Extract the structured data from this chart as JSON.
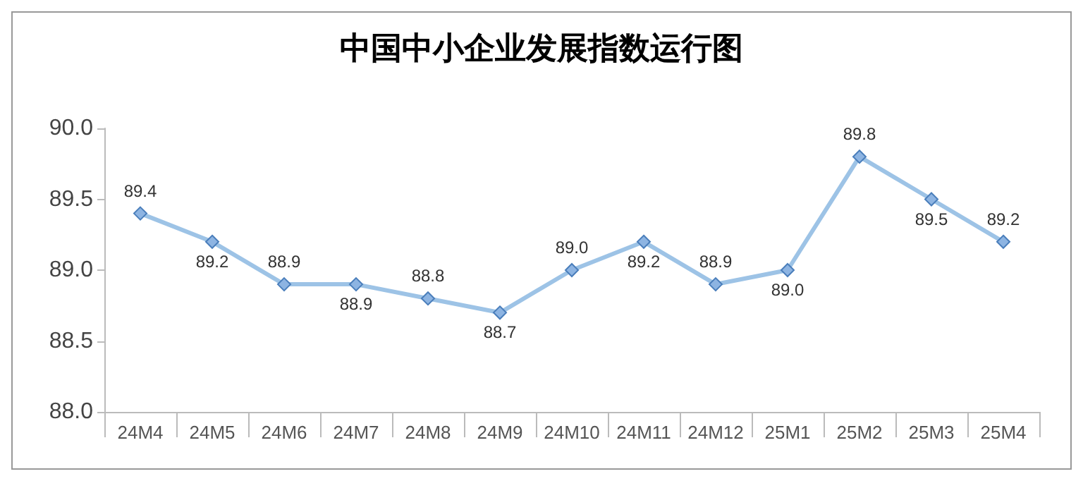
{
  "chart_data": {
    "type": "line",
    "title": "中国中小企业发展指数运行图",
    "categories": [
      "24M4",
      "24M5",
      "24M6",
      "24M7",
      "24M8",
      "24M9",
      "24M10",
      "24M11",
      "24M12",
      "25M1",
      "25M2",
      "25M3",
      "25M4"
    ],
    "series": [
      {
        "color": "#9dc3e6",
        "values": [
          89.4,
          89.2,
          88.9,
          88.9,
          88.8,
          88.7,
          89.0,
          89.2,
          88.9,
          89.0,
          89.8,
          89.5,
          89.2
        ],
        "value_labels": [
          "89.4",
          "89.2",
          "88.9",
          "88.9",
          "88.8",
          "88.7",
          "89.0",
          "89.2",
          "88.9",
          "89.0",
          "89.8",
          "89.5",
          "89.2"
        ]
      }
    ],
    "ylim": [
      88.0,
      90.0
    ],
    "yticks": [
      {
        "value": 88.0,
        "label": "88.0"
      },
      {
        "value": 88.5,
        "label": "88.5"
      },
      {
        "value": 89.0,
        "label": "89.0"
      },
      {
        "value": 89.5,
        "label": "89.5"
      },
      {
        "value": 90.0,
        "label": "90.0"
      }
    ],
    "grid": false,
    "marker": "diamond",
    "line_style": "solid"
  }
}
